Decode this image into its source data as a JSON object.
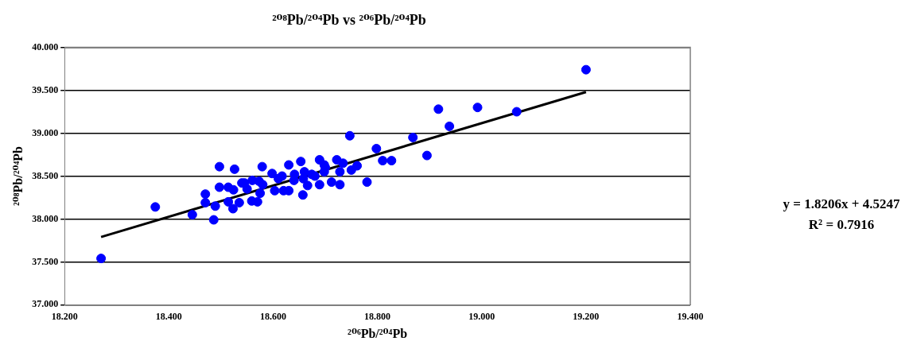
{
  "chart_data": {
    "type": "scatter",
    "title": "²⁰⁸Pb/²⁰⁴Pb vs ²⁰⁶Pb/²⁰⁴Pb",
    "xlabel": "²⁰⁶Pb/²⁰⁴Pb",
    "ylabel": "²⁰⁸Pb/²⁰⁴Pb",
    "xlim": [
      18.2,
      19.4
    ],
    "xticks": [
      {
        "value": 18.2,
        "label": "18.200"
      },
      {
        "value": 18.4,
        "label": "18.400"
      },
      {
        "value": 18.6,
        "label": "18.600"
      },
      {
        "value": 18.8,
        "label": "18.800"
      },
      {
        "value": 19.0,
        "label": "19.000"
      },
      {
        "value": 19.2,
        "label": "19.200"
      },
      {
        "value": 19.4,
        "label": "19.400"
      }
    ],
    "ylim": [
      37,
      40
    ],
    "yticks": [
      {
        "value": 37,
        "label": "37.000"
      },
      {
        "value": 37.5,
        "label": "37.500"
      },
      {
        "value": 38,
        "label": "38.000"
      },
      {
        "value": 38.5,
        "label": "38.500"
      },
      {
        "value": 39,
        "label": "39.000"
      },
      {
        "value": 39.5,
        "label": "39.500"
      },
      {
        "value": 40,
        "label": "40.000"
      }
    ],
    "grid": "y",
    "legend": false,
    "annotations": [
      "y = 1.8206x + 4.5247",
      "R² = 0.7916"
    ],
    "series": [
      {
        "color": "#0000ff",
        "marker": "circle",
        "x": [
          18.27,
          18.374,
          18.445,
          18.486,
          18.47,
          18.47,
          18.489,
          18.497,
          18.526,
          18.497,
          18.514,
          18.524,
          18.514,
          18.523,
          18.535,
          18.545,
          18.56,
          18.573,
          18.559,
          18.57,
          18.579,
          18.575,
          18.598,
          18.603,
          18.617,
          18.62,
          18.63,
          18.63,
          18.641,
          18.653,
          18.657,
          18.666,
          18.658,
          18.674,
          18.689,
          18.689,
          18.698,
          18.698,
          18.712,
          18.722,
          18.728,
          18.728,
          18.734,
          18.75,
          18.761,
          18.747,
          18.78,
          18.798,
          18.81,
          18.827,
          18.868,
          18.895,
          18.917,
          18.938,
          18.992,
          19.067,
          19.2,
          18.54,
          18.58,
          18.61,
          18.64,
          18.66,
          18.68,
          18.7,
          18.55
        ],
        "values": [
          37.54,
          38.14,
          38.05,
          37.99,
          38.29,
          38.19,
          38.15,
          38.61,
          38.58,
          38.37,
          38.37,
          38.34,
          38.2,
          38.12,
          38.19,
          38.42,
          38.45,
          38.44,
          38.21,
          38.2,
          38.61,
          38.3,
          38.53,
          38.33,
          38.5,
          38.33,
          38.63,
          38.33,
          38.52,
          38.67,
          38.28,
          38.39,
          38.47,
          38.52,
          38.69,
          38.4,
          38.63,
          38.55,
          38.43,
          38.69,
          38.4,
          38.55,
          38.65,
          38.57,
          38.62,
          38.97,
          38.43,
          38.82,
          38.68,
          38.68,
          38.95,
          38.74,
          39.28,
          39.08,
          39.3,
          39.25,
          39.74,
          38.42,
          38.4,
          38.47,
          38.45,
          38.55,
          38.5,
          38.6,
          38.35
        ]
      },
      {
        "type": "line",
        "marker": "none",
        "color": "#000000",
        "x": [
          18.27,
          19.2
        ],
        "values": [
          37.79,
          39.48
        ]
      }
    ]
  }
}
